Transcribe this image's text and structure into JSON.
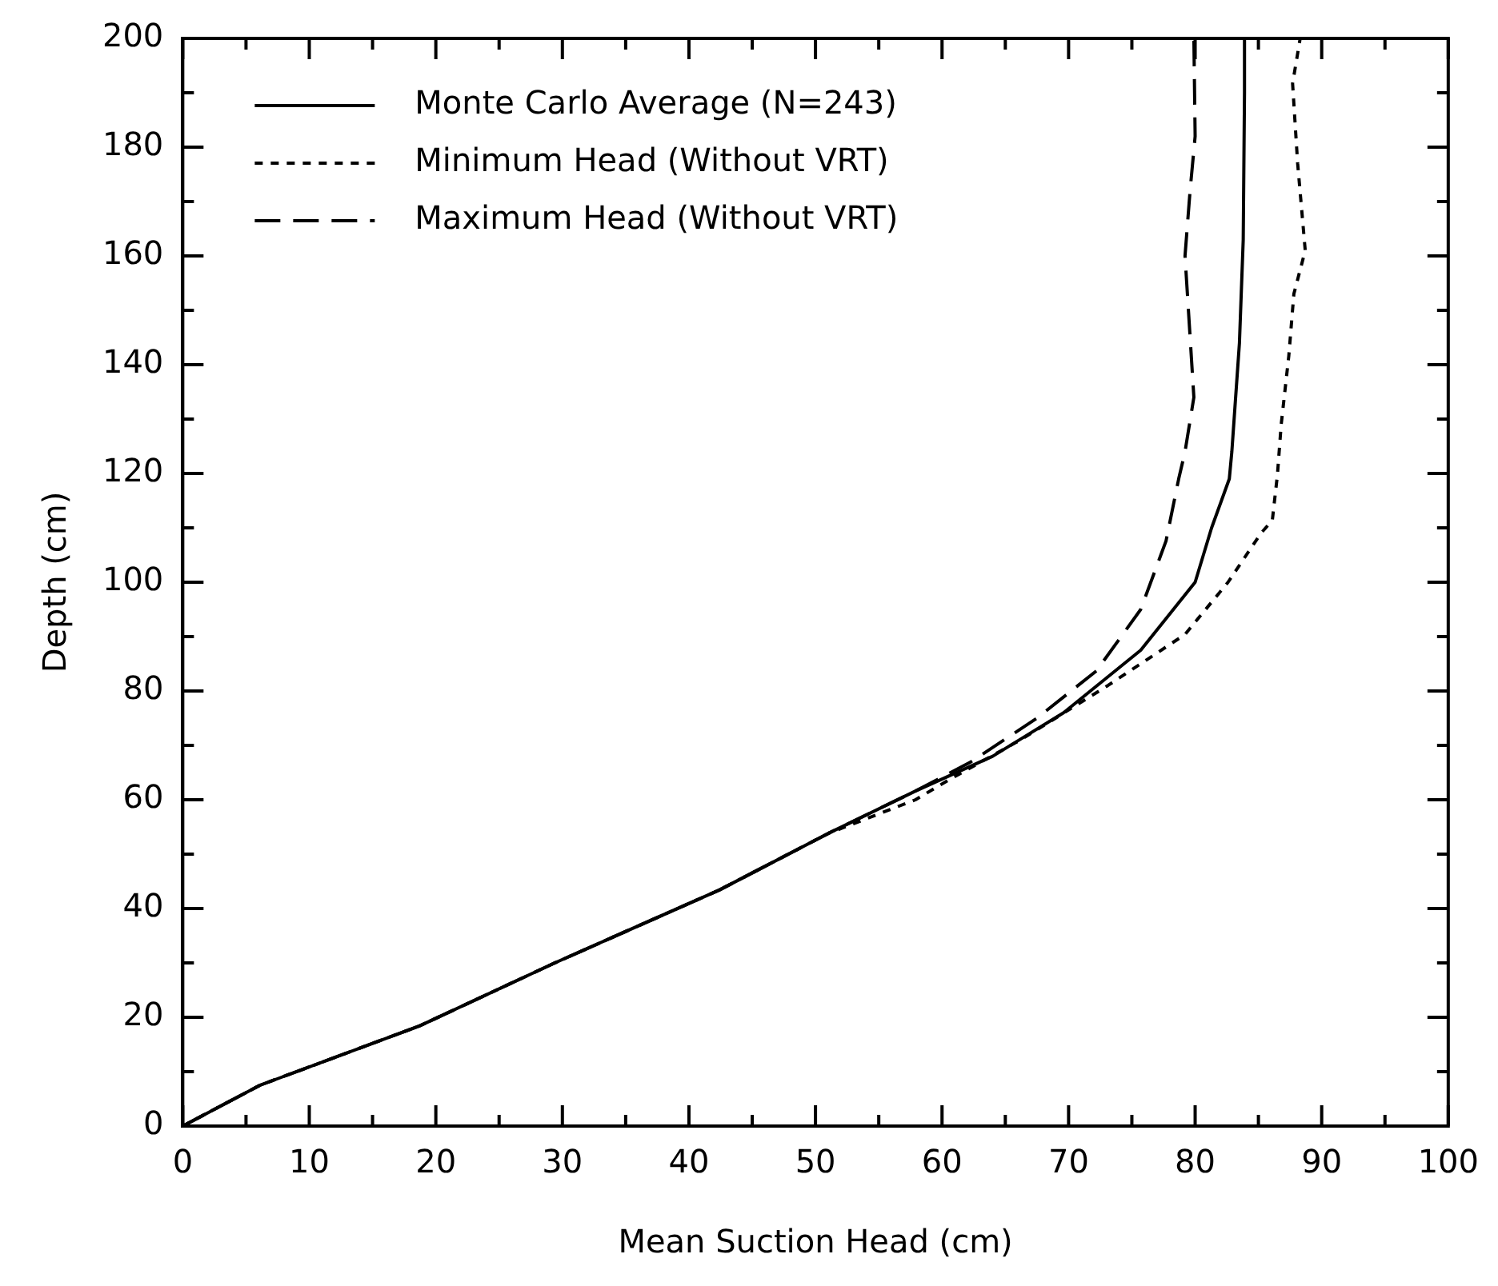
{
  "chart_data": {
    "type": "line",
    "xlabel": "Mean Suction Head (cm)",
    "ylabel": "Depth (cm)",
    "xlim": [
      0,
      100
    ],
    "ylim": [
      0,
      200
    ],
    "xticks": [
      0,
      {
        "value": 5,
        "label": null
      },
      10,
      {
        "value": 15,
        "label": null
      },
      20,
      {
        "value": 25,
        "label": null
      },
      30,
      {
        "value": 35,
        "label": null
      },
      40,
      {
        "value": 45,
        "label": null
      },
      50,
      {
        "value": 55,
        "label": null
      },
      60,
      {
        "value": 65,
        "label": null
      },
      70,
      {
        "value": 75,
        "label": null
      },
      80,
      {
        "value": 85,
        "label": null
      },
      90,
      {
        "value": 95,
        "label": null
      },
      100
    ],
    "yticks": [
      0,
      {
        "value": 10,
        "label": null
      },
      20,
      {
        "value": 30,
        "label": null
      },
      40,
      {
        "value": 50,
        "label": null
      },
      60,
      {
        "value": 70,
        "label": null
      },
      80,
      {
        "value": 90,
        "label": null
      },
      100,
      {
        "value": 110,
        "label": null
      },
      120,
      {
        "value": 130,
        "label": null
      },
      140,
      {
        "value": 150,
        "label": null
      },
      160,
      {
        "value": 170,
        "label": null
      },
      180,
      {
        "value": 190,
        "label": null
      },
      200
    ],
    "grid": false,
    "legend": "top left",
    "marker": "none",
    "series": [
      {
        "name": "Monte Carlo Average (N=243)",
        "color": "#000000",
        "line_style": "solid",
        "x": [
          0,
          6.1,
          18.7,
          29.4,
          42.4,
          51,
          57.9,
          64,
          69.6,
          75.7,
          80,
          81.3,
          82.7,
          82.9,
          83.5,
          83.8,
          83.9,
          83.9
        ],
        "values": [
          0,
          7.5,
          18.4,
          30,
          43.4,
          53.8,
          61.6,
          68,
          76,
          87.5,
          100,
          110,
          119,
          124,
          144,
          163,
          190,
          200
        ]
      },
      {
        "name": "Minimum Head (Without VRT)",
        "color": "#000000",
        "line_style": "dotted",
        "x": [
          0,
          6.1,
          18.7,
          29.4,
          42.4,
          51,
          57.9,
          60.5,
          66.2,
          73.1,
          79.2,
          82.6,
          85.2,
          86.1,
          86.5,
          86.8,
          87.4,
          87.8,
          88.7,
          88.1,
          87.7,
          88.3
        ],
        "values": [
          0,
          7.5,
          18.4,
          30,
          43.4,
          53.8,
          60,
          63.6,
          71,
          81,
          90.4,
          100,
          109,
          111.4,
          119.7,
          129,
          141.6,
          153,
          161,
          177,
          191.7,
          200
        ]
      },
      {
        "name": "Maximum Head (Without VRT)",
        "color": "#000000",
        "line_style": "dashed",
        "x": [
          0,
          6.1,
          18.7,
          29.4,
          42.4,
          51,
          57.9,
          62.3,
          67.5,
          72.2,
          75.7,
          77.7,
          78.7,
          79.2,
          79.9,
          79.2,
          79.6,
          80,
          79.9
        ],
        "values": [
          0,
          7.5,
          18.4,
          30,
          43.4,
          53.8,
          61.6,
          67,
          75,
          83.7,
          95,
          107.6,
          119,
          124,
          134,
          160,
          172,
          182,
          200
        ]
      }
    ]
  }
}
